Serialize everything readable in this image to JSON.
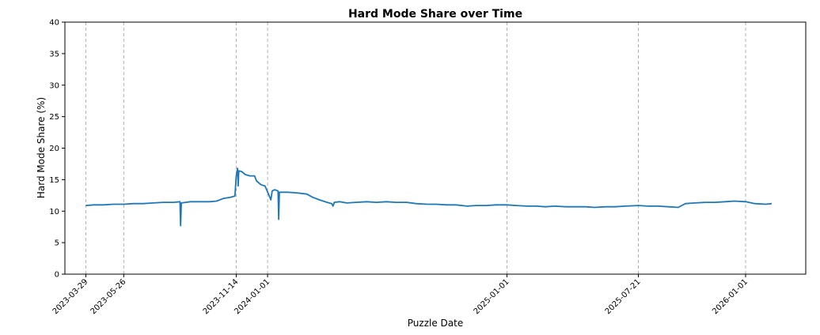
{
  "chart_data": {
    "type": "line",
    "title": "Hard Mode Share over Time",
    "xlabel": "Puzzle Date",
    "ylabel": "Hard Mode Share (%)",
    "ylim": [
      0,
      40
    ],
    "xlim": [
      "2023-02-25",
      "2026-04-03"
    ],
    "yticks": [
      0,
      5,
      10,
      15,
      20,
      25,
      30,
      35,
      40
    ],
    "xticks": [
      "2023-03-29",
      "2023-05-26",
      "2023-11-14",
      "2024-01-01",
      "2025-01-01",
      "2025-07-21",
      "2026-01-01"
    ],
    "grid": "vertical dashed lines at x tick dates",
    "color": "#1f77b4",
    "series": [
      {
        "points": [
          [
            "2023-03-29",
            10.9
          ],
          [
            "2023-04-10",
            11.0
          ],
          [
            "2023-04-25",
            11.0
          ],
          [
            "2023-05-10",
            11.1
          ],
          [
            "2023-05-26",
            11.1
          ],
          [
            "2023-06-10",
            11.2
          ],
          [
            "2023-06-25",
            11.2
          ],
          [
            "2023-07-10",
            11.3
          ],
          [
            "2023-07-25",
            11.4
          ],
          [
            "2023-08-10",
            11.4
          ],
          [
            "2023-08-20",
            11.5
          ],
          [
            "2023-08-21",
            7.7
          ],
          [
            "2023-08-22",
            11.3
          ],
          [
            "2023-09-05",
            11.5
          ],
          [
            "2023-09-20",
            11.5
          ],
          [
            "2023-10-05",
            11.5
          ],
          [
            "2023-10-15",
            11.6
          ],
          [
            "2023-10-25",
            12.0
          ],
          [
            "2023-11-05",
            12.2
          ],
          [
            "2023-11-12",
            12.4
          ],
          [
            "2023-11-14",
            15.5
          ],
          [
            "2023-11-16",
            16.8
          ],
          [
            "2023-11-17",
            14.0
          ],
          [
            "2023-11-18",
            16.4
          ],
          [
            "2023-11-22",
            16.3
          ],
          [
            "2023-11-28",
            15.8
          ],
          [
            "2023-12-05",
            15.6
          ],
          [
            "2023-12-12",
            15.6
          ],
          [
            "2023-12-15",
            14.8
          ],
          [
            "2023-12-22",
            14.2
          ],
          [
            "2023-12-28",
            14.0
          ],
          [
            "2024-01-02",
            12.8
          ],
          [
            "2024-01-06",
            11.8
          ],
          [
            "2024-01-08",
            13.2
          ],
          [
            "2024-01-12",
            13.4
          ],
          [
            "2024-01-17",
            13.2
          ],
          [
            "2024-01-18",
            8.7
          ],
          [
            "2024-01-19",
            13.0
          ],
          [
            "2024-02-01",
            13.0
          ],
          [
            "2024-02-15",
            12.9
          ],
          [
            "2024-03-01",
            12.7
          ],
          [
            "2024-03-10",
            12.2
          ],
          [
            "2024-03-20",
            11.8
          ],
          [
            "2024-04-01",
            11.4
          ],
          [
            "2024-04-08",
            11.2
          ],
          [
            "2024-04-10",
            10.8
          ],
          [
            "2024-04-12",
            11.4
          ],
          [
            "2024-04-20",
            11.5
          ],
          [
            "2024-05-01",
            11.3
          ],
          [
            "2024-05-15",
            11.4
          ],
          [
            "2024-06-01",
            11.5
          ],
          [
            "2024-06-15",
            11.4
          ],
          [
            "2024-07-01",
            11.5
          ],
          [
            "2024-07-15",
            11.4
          ],
          [
            "2024-08-01",
            11.4
          ],
          [
            "2024-08-15",
            11.2
          ],
          [
            "2024-09-01",
            11.1
          ],
          [
            "2024-09-15",
            11.1
          ],
          [
            "2024-10-01",
            11.0
          ],
          [
            "2024-10-15",
            11.0
          ],
          [
            "2024-11-01",
            10.8
          ],
          [
            "2024-11-15",
            10.9
          ],
          [
            "2024-12-01",
            10.9
          ],
          [
            "2024-12-15",
            11.0
          ],
          [
            "2025-01-01",
            11.0
          ],
          [
            "2025-01-15",
            10.9
          ],
          [
            "2025-02-01",
            10.8
          ],
          [
            "2025-02-15",
            10.8
          ],
          [
            "2025-03-01",
            10.7
          ],
          [
            "2025-03-15",
            10.8
          ],
          [
            "2025-04-01",
            10.7
          ],
          [
            "2025-04-15",
            10.7
          ],
          [
            "2025-05-01",
            10.7
          ],
          [
            "2025-05-15",
            10.6
          ],
          [
            "2025-06-01",
            10.7
          ],
          [
            "2025-06-15",
            10.7
          ],
          [
            "2025-07-01",
            10.8
          ],
          [
            "2025-07-21",
            10.9
          ],
          [
            "2025-08-05",
            10.8
          ],
          [
            "2025-08-20",
            10.8
          ],
          [
            "2025-09-05",
            10.7
          ],
          [
            "2025-09-20",
            10.6
          ],
          [
            "2025-10-01",
            11.2
          ],
          [
            "2025-10-15",
            11.3
          ],
          [
            "2025-11-01",
            11.4
          ],
          [
            "2025-11-15",
            11.4
          ],
          [
            "2025-12-01",
            11.5
          ],
          [
            "2025-12-15",
            11.6
          ],
          [
            "2026-01-01",
            11.5
          ],
          [
            "2026-01-15",
            11.2
          ],
          [
            "2026-02-01",
            11.1
          ],
          [
            "2026-02-10",
            11.2
          ]
        ]
      }
    ]
  }
}
